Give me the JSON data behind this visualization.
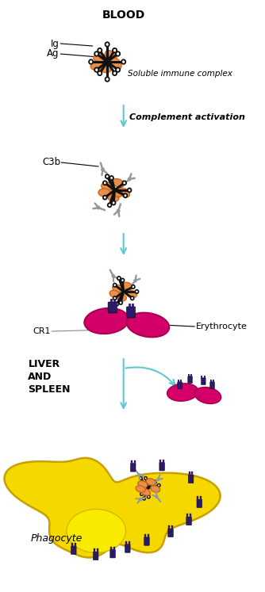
{
  "title_blood": "BLOOD",
  "label_liver": "LIVER\nAND\nSPLEEN",
  "label_phagocyte": "Phagocyte",
  "label_ig": "Ig",
  "label_ag": "Ag",
  "label_c3b": "C3b",
  "label_cr1": "CR1",
  "label_erythrocyte": "Erythrocyte",
  "label_immune_complex": "Soluble immune complex",
  "label_complement": "Complement activation",
  "color_antibody": "#111111",
  "color_antigen": "#e8904a",
  "color_complement": "#9099a0",
  "color_erythrocyte": "#d4006a",
  "color_phagocyte": "#f5d800",
  "color_phagocyte_edge": "#c8a000",
  "color_receptor": "#2d1a6b",
  "color_arrow": "#5bc8d4",
  "color_white": "#ffffff",
  "color_black": "#000000"
}
